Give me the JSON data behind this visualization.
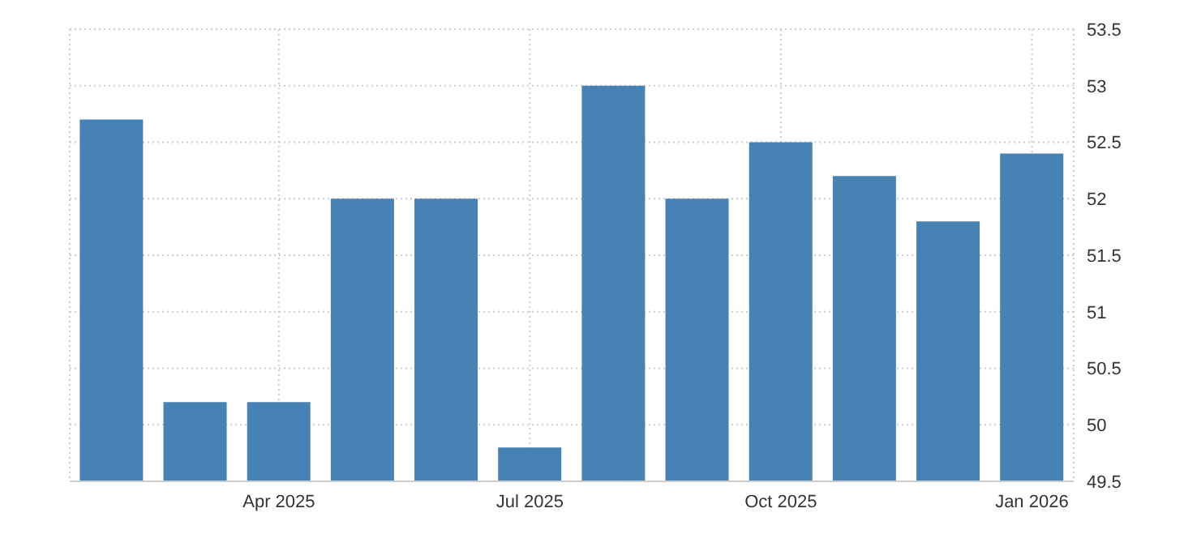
{
  "chart_data": {
    "type": "bar",
    "categories": [
      null,
      null,
      "Apr 2025",
      null,
      null,
      "Jul 2025",
      null,
      null,
      "Oct 2025",
      null,
      null,
      "Jan 2026"
    ],
    "values": [
      52.7,
      50.2,
      50.2,
      52,
      52,
      49.8,
      53,
      52,
      52.5,
      52.2,
      51.8,
      52.4
    ],
    "color": "#4682b4",
    "ylim": [
      49.5,
      53.5
    ],
    "yticks": [
      49.5,
      50,
      50.5,
      51,
      51.5,
      52,
      52.5,
      53,
      53.5
    ],
    "grid": true
  }
}
